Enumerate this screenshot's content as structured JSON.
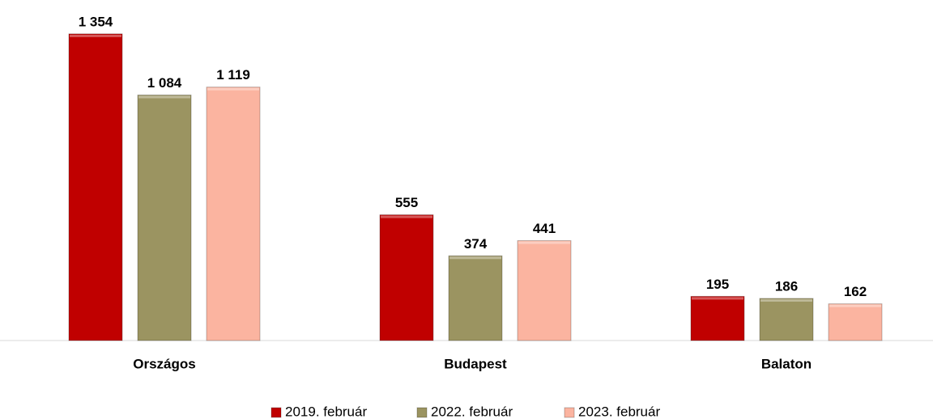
{
  "chart_data": {
    "type": "bar",
    "categories": [
      "Országos",
      "Budapest",
      "Balaton"
    ],
    "series": [
      {
        "name": "2019. február",
        "color": "#c00000",
        "values": [
          1354,
          555,
          195
        ],
        "value_labels": [
          "1 354",
          "555",
          "195"
        ]
      },
      {
        "name": "2022. február",
        "color": "#9b9461",
        "values": [
          1084,
          374,
          186
        ],
        "value_labels": [
          "1 084",
          "374",
          "186"
        ]
      },
      {
        "name": "2023. február",
        "color": "#fbb4a0",
        "values": [
          1119,
          441,
          162
        ],
        "value_labels": [
          "1 119",
          "441",
          "162"
        ]
      }
    ],
    "legend": "bottom"
  }
}
